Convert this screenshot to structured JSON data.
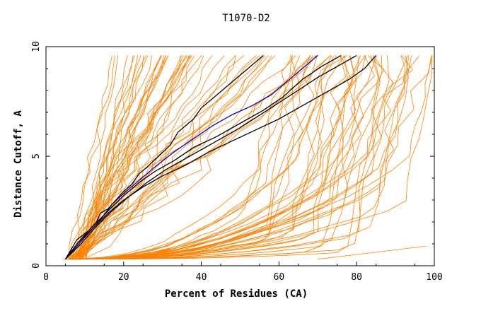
{
  "chart_data": {
    "type": "line",
    "title": "T1070-D2",
    "xlabel": "Percent of Residues (CA)",
    "ylabel": "Distance Cutoff, A",
    "xlim": [
      0,
      100
    ],
    "ylim": [
      0,
      10
    ],
    "xticks": [
      0,
      20,
      40,
      60,
      80,
      100
    ],
    "yticks": [
      0,
      5,
      10
    ],
    "grid": false,
    "colors": {
      "background_models": "#ff8000",
      "highlight_blue": "#0000cc",
      "highlight_black": "#000000",
      "axis": "#000000"
    },
    "background_model_count": 90,
    "background_summary": "Many orange per-model curves of distance cutoff vs percent of residues, spanning 5-100% of residues from 0.3 to 9.6 A",
    "series": [
      {
        "name": "highlight-blue",
        "color": "#0000cc",
        "x": [
          5,
          8,
          11,
          14,
          17,
          20,
          24,
          28,
          33,
          38,
          43,
          48,
          53,
          58,
          62,
          66,
          70
        ],
        "y": [
          0.3,
          0.9,
          1.5,
          2.1,
          2.8,
          3.3,
          3.9,
          4.5,
          5.2,
          5.8,
          6.4,
          6.9,
          7.3,
          7.8,
          8.4,
          9.0,
          9.6
        ]
      },
      {
        "name": "highlight-black-1",
        "color": "#000000",
        "x": [
          5,
          8,
          11,
          13,
          14,
          16,
          18,
          20,
          22,
          24,
          26,
          29,
          32,
          34,
          36,
          38,
          40,
          44,
          48,
          52,
          56
        ],
        "y": [
          0.3,
          1.2,
          1.6,
          2.0,
          2.4,
          2.6,
          3.0,
          3.4,
          3.7,
          4.2,
          4.5,
          5.0,
          5.5,
          6.1,
          6.4,
          6.7,
          7.2,
          7.8,
          8.4,
          9.0,
          9.6
        ]
      },
      {
        "name": "highlight-black-2",
        "color": "#000000",
        "x": [
          5,
          8,
          12,
          16,
          20,
          24,
          28,
          33,
          38,
          44,
          50,
          56,
          61,
          66,
          71,
          76
        ],
        "y": [
          0.3,
          1.0,
          1.8,
          2.5,
          3.2,
          3.8,
          4.3,
          4.8,
          5.4,
          5.9,
          6.5,
          7.1,
          7.7,
          8.5,
          9.1,
          9.6
        ]
      },
      {
        "name": "highlight-black-3",
        "color": "#000000",
        "x": [
          5,
          8,
          12,
          16,
          20,
          25,
          30,
          36,
          42,
          48,
          54,
          60,
          66,
          72,
          78,
          82,
          85
        ],
        "y": [
          0.3,
          1.0,
          1.7,
          2.4,
          3.0,
          3.6,
          4.1,
          4.6,
          5.2,
          5.7,
          6.2,
          6.7,
          7.3,
          7.9,
          8.5,
          9.0,
          9.6
        ]
      },
      {
        "name": "highlight-black-4",
        "color": "#000000",
        "x": [
          5,
          9,
          13,
          17,
          21,
          26,
          31,
          37,
          43,
          50,
          57,
          64,
          70,
          75,
          80
        ],
        "y": [
          0.3,
          1.0,
          1.8,
          2.5,
          3.1,
          3.8,
          4.4,
          5.0,
          5.6,
          6.3,
          7.1,
          7.9,
          8.6,
          9.1,
          9.6
        ]
      }
    ]
  }
}
